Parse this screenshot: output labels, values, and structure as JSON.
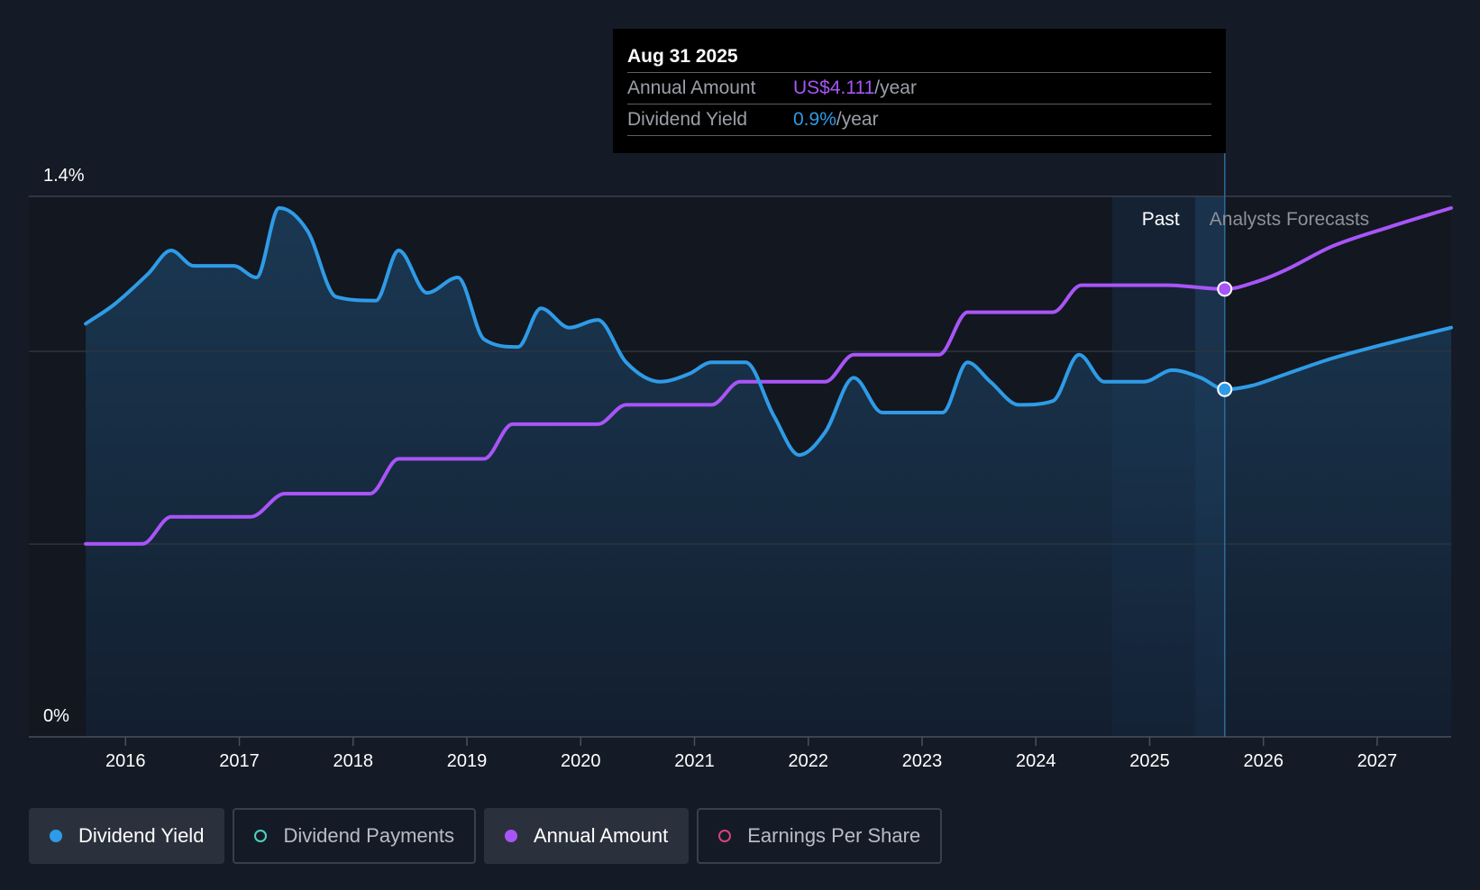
{
  "tooltip": {
    "date": "Aug 31 2025",
    "annual_label": "Annual Amount",
    "annual_value": "US$4.111",
    "annual_unit": "/year",
    "yield_label": "Dividend Yield",
    "yield_value": "0.9%",
    "yield_unit": "/year"
  },
  "legend": [
    {
      "label": "Dividend Yield",
      "color": "#2f9be6",
      "active": true,
      "filled": true
    },
    {
      "label": "Dividend Payments",
      "color": "#4fd1c5",
      "active": false,
      "filled": false
    },
    {
      "label": "Annual Amount",
      "color": "#a855f7",
      "active": true,
      "filled": true
    },
    {
      "label": "Earnings Per Share",
      "color": "#d6437a",
      "active": false,
      "filled": false
    }
  ],
  "chart_data": {
    "type": "line",
    "title": "",
    "xlabel": "",
    "ylabel": "",
    "y_tick_labels": [
      "1.4%",
      "0%"
    ],
    "ylim": [
      0,
      1.4
    ],
    "xlim": [
      2015.15,
      2027.65
    ],
    "x_ticks": [
      "2016",
      "2017",
      "2018",
      "2019",
      "2020",
      "2021",
      "2022",
      "2023",
      "2024",
      "2025",
      "2026",
      "2027"
    ],
    "past_label": "Past",
    "forecast_label": "Analysts Forecasts",
    "past_forecast_split": 2025.66,
    "past_band_start": 2024.67,
    "forecast_band_end": 2025.4,
    "marker_x": 2025.66,
    "colors": {
      "dividend_yield": "#2f9be6",
      "annual_amount": "#a855f7"
    },
    "series": [
      {
        "name": "Dividend Yield",
        "unit": "%",
        "points": [
          [
            2015.65,
            1.07
          ],
          [
            2015.9,
            1.12
          ],
          [
            2016.2,
            1.2
          ],
          [
            2016.4,
            1.26
          ],
          [
            2016.6,
            1.22
          ],
          [
            2016.95,
            1.22
          ],
          [
            2017.15,
            1.19
          ],
          [
            2017.35,
            1.37
          ],
          [
            2017.6,
            1.31
          ],
          [
            2017.85,
            1.14
          ],
          [
            2018.2,
            1.13
          ],
          [
            2018.4,
            1.26
          ],
          [
            2018.65,
            1.15
          ],
          [
            2018.92,
            1.19
          ],
          [
            2019.15,
            1.03
          ],
          [
            2019.45,
            1.01
          ],
          [
            2019.65,
            1.11
          ],
          [
            2019.9,
            1.06
          ],
          [
            2020.15,
            1.08
          ],
          [
            2020.4,
            0.97
          ],
          [
            2020.7,
            0.92
          ],
          [
            2020.95,
            0.94
          ],
          [
            2021.15,
            0.97
          ],
          [
            2021.45,
            0.97
          ],
          [
            2021.7,
            0.83
          ],
          [
            2021.92,
            0.73
          ],
          [
            2022.15,
            0.79
          ],
          [
            2022.4,
            0.93
          ],
          [
            2022.65,
            0.84
          ],
          [
            2022.9,
            0.84
          ],
          [
            2023.18,
            0.84
          ],
          [
            2023.4,
            0.97
          ],
          [
            2023.6,
            0.92
          ],
          [
            2023.85,
            0.86
          ],
          [
            2024.15,
            0.87
          ],
          [
            2024.38,
            0.99
          ],
          [
            2024.6,
            0.92
          ],
          [
            2024.95,
            0.92
          ],
          [
            2025.2,
            0.95
          ],
          [
            2025.45,
            0.93
          ],
          [
            2025.66,
            0.9
          ],
          [
            2025.9,
            0.91
          ],
          [
            2026.2,
            0.94
          ],
          [
            2026.6,
            0.98
          ],
          [
            2027.1,
            1.02
          ],
          [
            2027.65,
            1.06
          ]
        ]
      },
      {
        "name": "Annual Amount",
        "unit": "relative",
        "points": [
          [
            2015.65,
            0.5
          ],
          [
            2016.15,
            0.5
          ],
          [
            2016.4,
            0.57
          ],
          [
            2017.1,
            0.57
          ],
          [
            2017.4,
            0.63
          ],
          [
            2018.15,
            0.63
          ],
          [
            2018.4,
            0.72
          ],
          [
            2019.15,
            0.72
          ],
          [
            2019.4,
            0.81
          ],
          [
            2020.15,
            0.81
          ],
          [
            2020.4,
            0.86
          ],
          [
            2021.15,
            0.86
          ],
          [
            2021.4,
            0.92
          ],
          [
            2022.15,
            0.92
          ],
          [
            2022.4,
            0.99
          ],
          [
            2023.15,
            0.99
          ],
          [
            2023.4,
            1.1
          ],
          [
            2024.15,
            1.1
          ],
          [
            2024.4,
            1.17
          ],
          [
            2025.15,
            1.17
          ],
          [
            2025.66,
            1.16
          ],
          [
            2025.95,
            1.18
          ],
          [
            2026.2,
            1.21
          ],
          [
            2026.6,
            1.27
          ],
          [
            2027.1,
            1.32
          ],
          [
            2027.65,
            1.37
          ]
        ]
      }
    ]
  }
}
